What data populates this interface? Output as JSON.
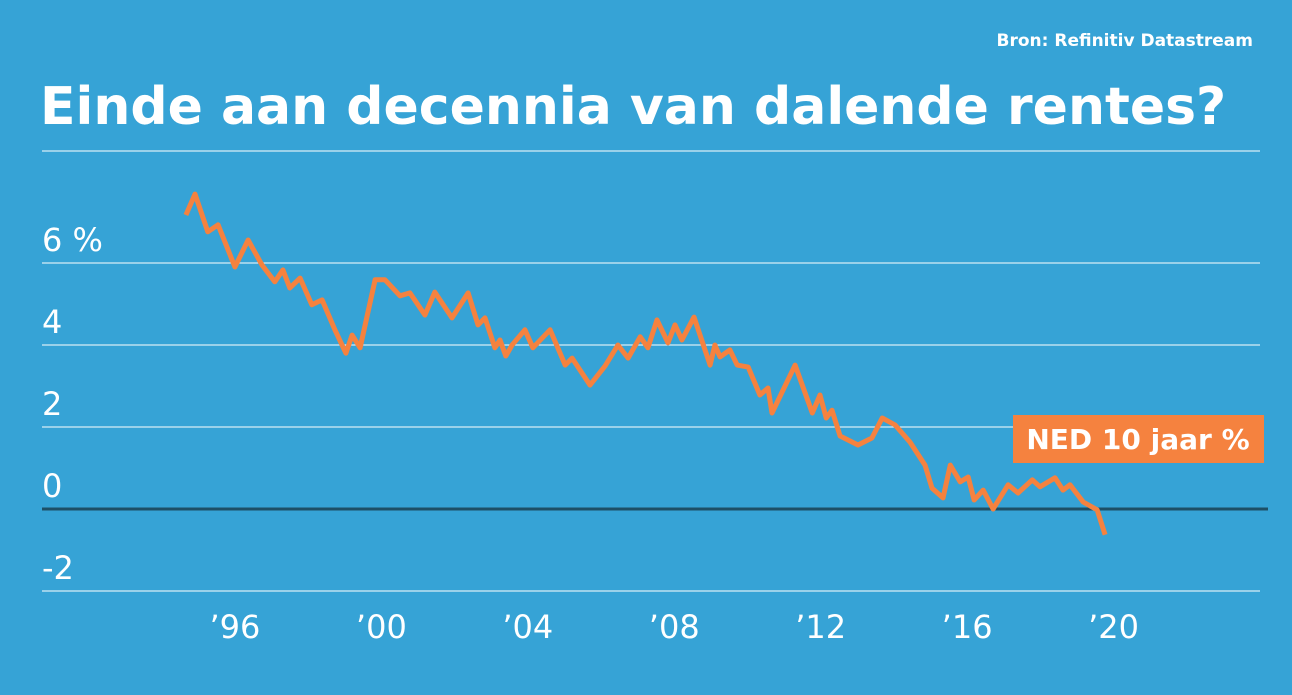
{
  "chart_data": {
    "type": "line",
    "title": "Einde aan decennia van dalende rentes?",
    "source": "Bron: Refinitiv Datastream",
    "series": [
      {
        "name": "NED 10 jaar %",
        "color": "#f5823f",
        "x": [
          1994.66,
          1994.91,
          1995.26,
          1995.54,
          1996.0,
          1996.36,
          1996.74,
          1997.09,
          1997.31,
          1997.5,
          1997.78,
          1998.1,
          1998.38,
          1998.73,
          1999.03,
          1999.2,
          1999.42,
          1999.83,
          2000.1,
          2000.51,
          2000.78,
          2001.19,
          2001.46,
          2001.93,
          2002.37,
          2002.64,
          2002.83,
          2003.1,
          2003.24,
          2003.4,
          2003.57,
          2003.92,
          2004.14,
          2004.61,
          2005.02,
          2005.21,
          2005.7,
          2006.11,
          2006.46,
          2006.74,
          2007.07,
          2007.28,
          2007.53,
          2007.83,
          2008.02,
          2008.21,
          2008.54,
          2008.98,
          2009.11,
          2009.25,
          2009.52,
          2009.72,
          2010.02,
          2010.34,
          2010.56,
          2010.67,
          2011.3,
          2011.77,
          2011.98,
          2012.15,
          2012.31,
          2012.53,
          2013.02,
          2013.4,
          2013.68,
          2014.03,
          2014.44,
          2014.85,
          2015.04,
          2015.34,
          2015.54,
          2015.81,
          2016.03,
          2016.19,
          2016.44,
          2016.71,
          2017.12,
          2017.39,
          2017.78,
          2017.99,
          2018.4,
          2018.62,
          2018.81,
          2019.17,
          2019.55,
          2019.77
        ],
        "values": [
          7.17,
          7.68,
          6.76,
          6.93,
          5.9,
          6.56,
          5.95,
          5.54,
          5.83,
          5.39,
          5.63,
          4.98,
          5.1,
          4.37,
          3.8,
          4.24,
          3.93,
          5.59,
          5.59,
          5.2,
          5.27,
          4.73,
          5.29,
          4.66,
          5.27,
          4.49,
          4.66,
          3.93,
          4.12,
          3.73,
          4.0,
          4.37,
          3.93,
          4.37,
          3.51,
          3.68,
          3.02,
          3.49,
          4.0,
          3.68,
          4.2,
          3.93,
          4.61,
          4.05,
          4.49,
          4.12,
          4.68,
          3.51,
          4.0,
          3.71,
          3.88,
          3.51,
          3.46,
          2.78,
          2.95,
          2.34,
          3.51,
          2.34,
          2.78,
          2.22,
          2.41,
          1.78,
          1.56,
          1.73,
          2.22,
          2.05,
          1.63,
          1.07,
          0.51,
          0.27,
          1.07,
          0.66,
          0.78,
          0.22,
          0.46,
          0.0,
          0.59,
          0.39,
          0.71,
          0.54,
          0.76,
          0.46,
          0.59,
          0.17,
          -0.02,
          -0.63
        ]
      }
    ],
    "xlim": [
      1990.73,
      2024.0
    ],
    "xticks": [
      {
        "value": 1996,
        "label": "’96"
      },
      {
        "value": 2000,
        "label": "’00"
      },
      {
        "value": 2004,
        "label": "’04"
      },
      {
        "value": 2008,
        "label": "’08"
      },
      {
        "value": 2012,
        "label": "’12"
      },
      {
        "value": 2016,
        "label": "’16"
      },
      {
        "value": 2020,
        "label": "’20"
      }
    ],
    "ylim": [
      -2,
      8.73
    ],
    "yticks": [
      -2,
      0,
      2,
      4,
      {
        "value": 6,
        "label": "6 %"
      }
    ],
    "grid": true
  }
}
